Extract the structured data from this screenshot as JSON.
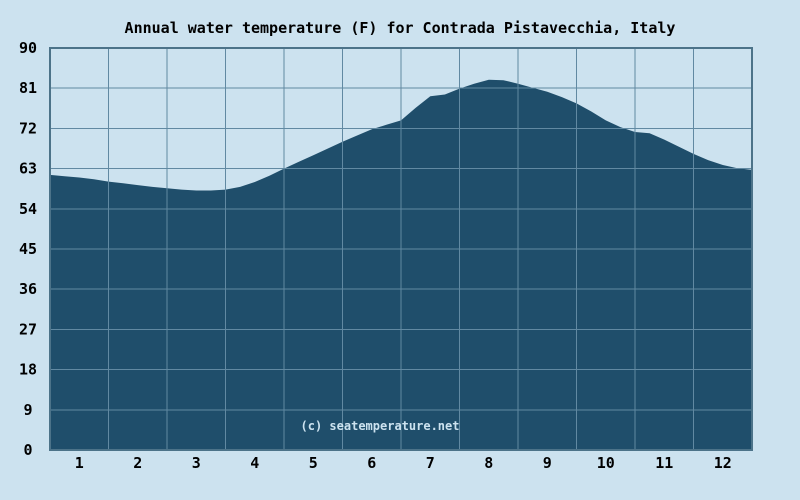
{
  "chart_data": {
    "type": "area",
    "title": "Annual water temperature (F) for Contrada Pistavecchia, Italy",
    "watermark": "(c) seatemperature.net",
    "xlabel": "",
    "ylabel": "",
    "unit": "F",
    "grid": true,
    "legend": "none",
    "ylim": [
      0,
      90
    ],
    "y_ticks": [
      90,
      81,
      72,
      63,
      54,
      45,
      36,
      27,
      18,
      9,
      0
    ],
    "x_ticks": [
      "1",
      "2",
      "3",
      "4",
      "5",
      "6",
      "7",
      "8",
      "9",
      "10",
      "11",
      "12"
    ],
    "categories": [
      "1",
      "2",
      "3",
      "4",
      "5",
      "6",
      "7",
      "8",
      "9",
      "10",
      "11",
      "12"
    ],
    "monthly_avg_f": [
      61.0,
      59.3,
      58.1,
      60.0,
      66.0,
      71.8,
      79.2,
      82.9,
      80.2,
      73.8,
      69.5,
      63.8
    ],
    "min_f": 58.1,
    "max_f": 82.9,
    "samples_month_temp_f": [
      [
        0.0,
        61.6
      ],
      [
        0.25,
        61.3
      ],
      [
        0.5,
        61.0
      ],
      [
        0.75,
        60.6
      ],
      [
        1.0,
        60.1
      ],
      [
        1.25,
        59.7
      ],
      [
        1.5,
        59.3
      ],
      [
        1.75,
        58.9
      ],
      [
        2.0,
        58.6
      ],
      [
        2.25,
        58.3
      ],
      [
        2.5,
        58.1
      ],
      [
        2.75,
        58.1
      ],
      [
        3.0,
        58.3
      ],
      [
        3.25,
        58.9
      ],
      [
        3.5,
        60.0
      ],
      [
        3.75,
        61.4
      ],
      [
        4.0,
        63.0
      ],
      [
        4.25,
        64.5
      ],
      [
        4.5,
        66.0
      ],
      [
        4.75,
        67.5
      ],
      [
        5.0,
        69.0
      ],
      [
        5.25,
        70.4
      ],
      [
        5.5,
        71.8
      ],
      [
        5.75,
        72.8
      ],
      [
        6.0,
        73.8
      ],
      [
        6.25,
        76.6
      ],
      [
        6.5,
        79.2
      ],
      [
        6.75,
        79.6
      ],
      [
        7.0,
        80.9
      ],
      [
        7.25,
        82.0
      ],
      [
        7.5,
        82.9
      ],
      [
        7.75,
        82.8
      ],
      [
        8.0,
        82.0
      ],
      [
        8.25,
        81.1
      ],
      [
        8.5,
        80.2
      ],
      [
        8.75,
        79.0
      ],
      [
        9.0,
        77.6
      ],
      [
        9.25,
        75.8
      ],
      [
        9.5,
        73.8
      ],
      [
        9.75,
        72.3
      ],
      [
        10.0,
        71.2
      ],
      [
        10.25,
        70.9
      ],
      [
        10.5,
        69.5
      ],
      [
        10.75,
        67.9
      ],
      [
        11.0,
        66.3
      ],
      [
        11.25,
        64.9
      ],
      [
        11.5,
        63.8
      ],
      [
        11.75,
        63.1
      ],
      [
        12.0,
        62.7
      ]
    ],
    "colors": {
      "background": "#cce2ef",
      "area_fill": "#1f4e6b",
      "gridline": "#6189a2",
      "border": "#4c7389",
      "text": "#000000",
      "watermark_text": "#cce2ef"
    }
  }
}
